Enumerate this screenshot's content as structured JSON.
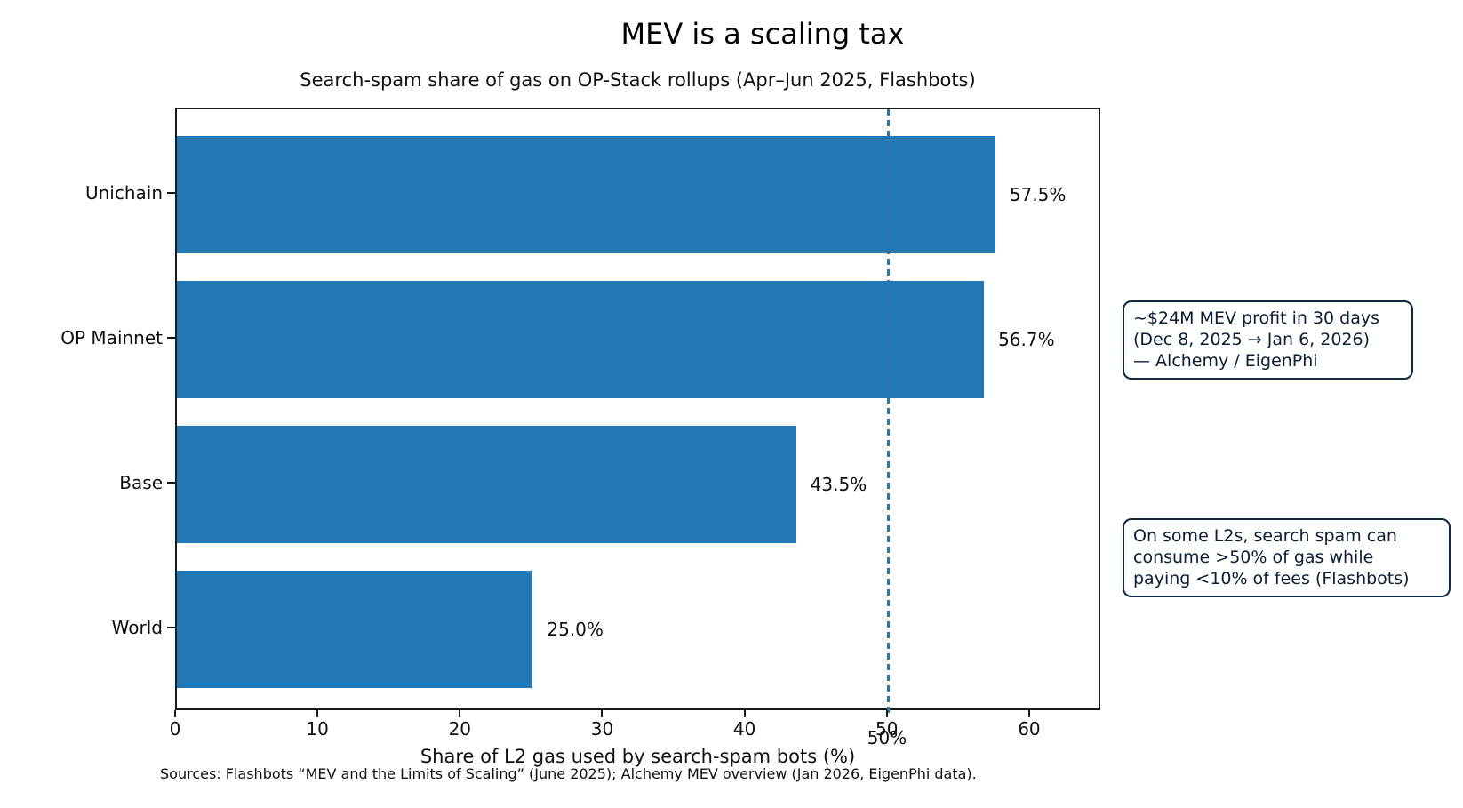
{
  "chart_data": {
    "type": "bar",
    "orientation": "horizontal",
    "title": "MEV is a scaling tax",
    "subtitle": "Search-spam share of gas on OP-Stack rollups (Apr–Jun 2025, Flashbots)",
    "categories": [
      "Unichain",
      "OP Mainnet",
      "Base",
      "World"
    ],
    "values": [
      57.5,
      56.7,
      43.5,
      25.0
    ],
    "value_labels": [
      "57.5%",
      "56.7%",
      "43.5%",
      "25.0%"
    ],
    "xlabel": "Share of L2 gas used by search-spam bots (%)",
    "xlim": [
      0,
      65
    ],
    "xticks": [
      0,
      10,
      20,
      30,
      40,
      50,
      60
    ],
    "grid": false,
    "legend_position": "none",
    "bar_color": "#2178b5",
    "reference_line": {
      "x": 50,
      "label": "50%",
      "color": "#2d74a8",
      "style": "dashed"
    },
    "source_note": "Sources: Flashbots “MEV and the Limits of Scaling” (June 2025); Alchemy MEV overview (Jan 2026, EigenPhi data).",
    "annotations": [
      {
        "text": "~$24M MEV profit in 30 days\n(Dec 8, 2025 → Jan 6, 2026)\n— Alchemy / EigenPhi",
        "fill": "#2178b5",
        "border": "#102a43"
      },
      {
        "text": "On some L2s, search spam can\nconsume >50% of gas while\npaying <10% of fees (Flashbots)",
        "fill": "#2178b5",
        "border": "#102a43"
      }
    ]
  }
}
